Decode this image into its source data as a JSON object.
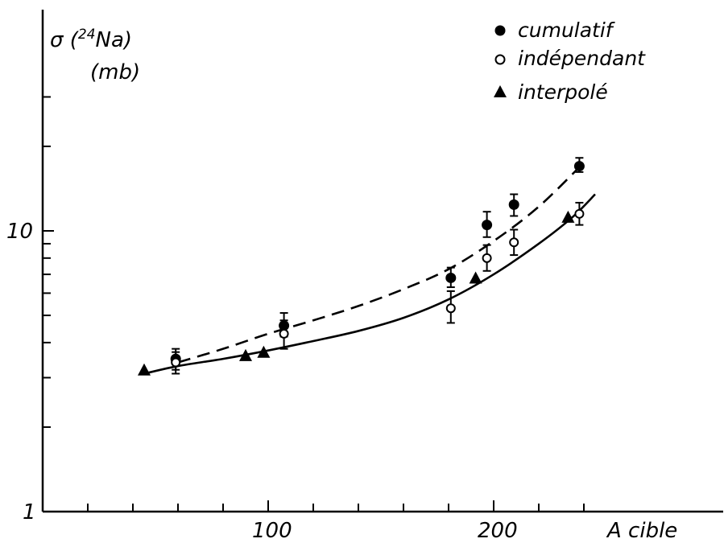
{
  "chart_data": {
    "type": "scatter",
    "title": "",
    "ylabel_line1_prefix": "σ (",
    "ylabel_line1_sup": "24",
    "ylabel_line1_suffix": "Na)",
    "ylabel_line2": "(mb)",
    "xlabel": "A cible",
    "y_scale": "log",
    "xlim": [
      0,
      250
    ],
    "ylim": [
      1,
      30
    ],
    "x_ticks": [
      20,
      40,
      60,
      80,
      100,
      120,
      140,
      160,
      180,
      200,
      220,
      240
    ],
    "x_tick_labels": [
      {
        "value": 100,
        "label": "100"
      },
      {
        "value": 200,
        "label": "200"
      }
    ],
    "y_ticks": [
      2,
      3,
      4,
      5,
      6,
      7,
      8,
      9,
      10,
      20,
      30
    ],
    "y_tick_labels": [
      {
        "value": 10,
        "label": "10"
      },
      {
        "value": 1,
        "label": "1"
      }
    ],
    "grid": false,
    "legend": {
      "position": "top-right",
      "entries": [
        {
          "marker": "filled-circle",
          "label": "cumulatif"
        },
        {
          "marker": "open-circle",
          "label": "indépendant"
        },
        {
          "marker": "filled-triangle",
          "label": "interpolé"
        }
      ]
    },
    "series": [
      {
        "name": "cumulatif",
        "marker": "filled-circle",
        "points": [
          {
            "x": 59,
            "y": 3.5,
            "lo": 3.2,
            "hi": 3.8
          },
          {
            "x": 107,
            "y": 4.6,
            "lo": 4.2,
            "hi": 5.1
          },
          {
            "x": 181,
            "y": 6.8,
            "lo": 6.3,
            "hi": 7.4
          },
          {
            "x": 197,
            "y": 10.5,
            "lo": 9.5,
            "hi": 11.7
          },
          {
            "x": 209,
            "y": 12.4,
            "lo": 11.3,
            "hi": 13.5
          },
          {
            "x": 238,
            "y": 17.0,
            "lo": 16.2,
            "hi": 18.2
          }
        ]
      },
      {
        "name": "indépendant",
        "marker": "open-circle",
        "points": [
          {
            "x": 59,
            "y": 3.4,
            "lo": 3.1,
            "hi": 3.7
          },
          {
            "x": 107,
            "y": 4.3,
            "lo": 3.8,
            "hi": 4.8
          },
          {
            "x": 181,
            "y": 5.3,
            "lo": 4.7,
            "hi": 6.1
          },
          {
            "x": 197,
            "y": 8.0,
            "lo": 7.2,
            "hi": 8.9
          },
          {
            "x": 209,
            "y": 9.1,
            "lo": 8.2,
            "hi": 10.1
          },
          {
            "x": 238,
            "y": 11.5,
            "lo": 10.5,
            "hi": 12.6
          }
        ]
      },
      {
        "name": "interpolé",
        "marker": "filled-triangle",
        "points": [
          {
            "x": 45,
            "y": 3.2
          },
          {
            "x": 90,
            "y": 3.6
          },
          {
            "x": 98,
            "y": 3.7
          },
          {
            "x": 192,
            "y": 6.8
          },
          {
            "x": 233,
            "y": 11.2
          }
        ]
      }
    ],
    "fit_curves": [
      {
        "style": "solid",
        "points": [
          [
            45,
            3.1
          ],
          [
            60,
            3.3
          ],
          [
            80,
            3.5
          ],
          [
            100,
            3.75
          ],
          [
            120,
            4.05
          ],
          [
            140,
            4.4
          ],
          [
            160,
            4.9
          ],
          [
            180,
            5.7
          ],
          [
            200,
            7.0
          ],
          [
            220,
            9.0
          ],
          [
            235,
            11.2
          ],
          [
            245,
            13.5
          ]
        ]
      },
      {
        "style": "dashed",
        "points": [
          [
            60,
            3.4
          ],
          [
            80,
            3.8
          ],
          [
            100,
            4.3
          ],
          [
            120,
            4.8
          ],
          [
            140,
            5.4
          ],
          [
            160,
            6.2
          ],
          [
            180,
            7.3
          ],
          [
            200,
            9.2
          ],
          [
            220,
            12.2
          ],
          [
            240,
            17.5
          ]
        ]
      }
    ]
  }
}
